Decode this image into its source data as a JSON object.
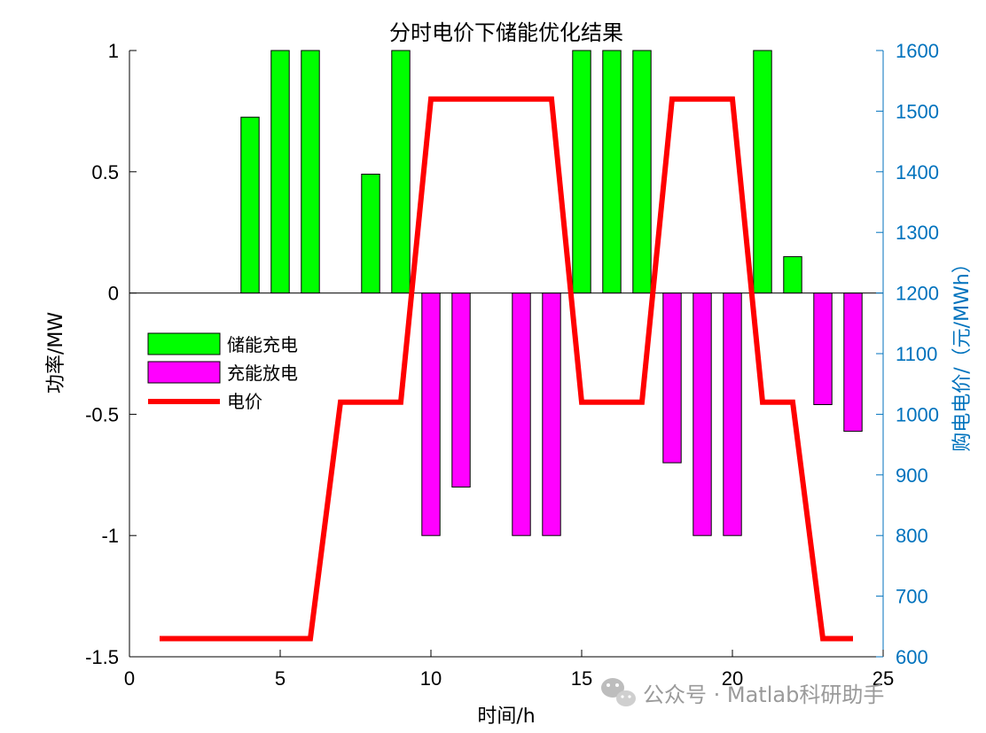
{
  "chart_data": {
    "type": "bar",
    "title": "分时电价下储能优化结果",
    "xlabel": "时间/h",
    "ylabel_left": "功率/MW",
    "ylabel_right": "购电电价/（元/MWh）",
    "xlim": [
      0,
      25
    ],
    "ylim_left": [
      -1.5,
      1
    ],
    "ylim_right": [
      600,
      1600
    ],
    "x_ticks": [
      0,
      5,
      10,
      15,
      20,
      25
    ],
    "y_ticks_left": [
      -1.5,
      -1,
      -0.5,
      0,
      0.5,
      1
    ],
    "y_ticks_right": [
      600,
      700,
      800,
      900,
      1000,
      1100,
      1200,
      1300,
      1400,
      1500,
      1600
    ],
    "x_tick_labels": [
      "0",
      "5",
      "10",
      "15",
      "20",
      "25"
    ],
    "y_tick_labels_left": [
      "-1.5",
      "-1",
      "-0.5",
      "0",
      "0.5",
      "1"
    ],
    "y_tick_labels_right": [
      "600",
      "700",
      "800",
      "900",
      "1000",
      "1100",
      "1200",
      "1300",
      "1400",
      "1500",
      "1600"
    ],
    "hours": [
      1,
      2,
      3,
      4,
      5,
      6,
      7,
      8,
      9,
      10,
      11,
      12,
      13,
      14,
      15,
      16,
      17,
      18,
      19,
      20,
      21,
      22,
      23,
      24
    ],
    "series": [
      {
        "name": "储能充电",
        "color": "#00ff00",
        "values": [
          0,
          0,
          0,
          0.725,
          1,
          1,
          0,
          0.49,
          1,
          0,
          0,
          0,
          0,
          0,
          1,
          1,
          1,
          0,
          0,
          0,
          1,
          0.15,
          0,
          0
        ]
      },
      {
        "name": "充能放电",
        "color": "#ff00ff",
        "values": [
          0,
          0,
          0,
          0,
          0,
          0,
          0,
          0,
          0,
          -1,
          -0.8,
          0,
          -1,
          -1,
          0,
          0,
          0,
          -0.7,
          -1,
          -1,
          0,
          0,
          -0.46,
          -0.57
        ]
      },
      {
        "name": "电价",
        "color": "#ff0000",
        "axis": "right",
        "values": [
          630,
          630,
          630,
          630,
          630,
          630,
          1020,
          1020,
          1020,
          1520,
          1520,
          1520,
          1520,
          1520,
          1020,
          1020,
          1020,
          1520,
          1520,
          1520,
          1020,
          1020,
          630,
          630
        ]
      }
    ],
    "legend_position": "left-middle",
    "grid": false
  },
  "watermark": "公众号 · Matlab科研助手",
  "colors": {
    "left_axis": "#000000",
    "right_axis": "#0072bd",
    "charge": "#00ff00",
    "discharge": "#ff00ff",
    "price": "#ff0000",
    "watermark": "#9a9a9a"
  }
}
